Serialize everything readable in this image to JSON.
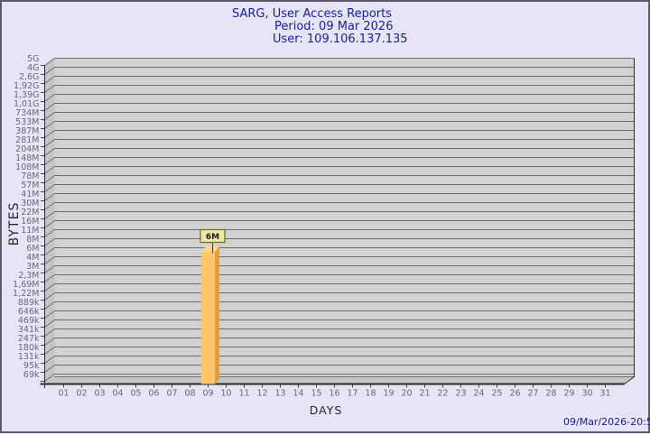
{
  "window": {
    "background_color": "#e5e5f5",
    "border_color": "#5c5c68"
  },
  "header": {
    "title": "SARG, User Access Reports",
    "period": "Period: 09 Mar 2026",
    "user": "User: 109.106.137.135",
    "text_color": "#1c1c9e"
  },
  "footer": {
    "timestamp": "09/Mar/2026-20:53"
  },
  "chart_data": {
    "type": "bar",
    "style": "3d-bar",
    "title": "SARG, User Access Reports",
    "subtitle": "Period: 09 Mar 2026 — User: 109.106.137.135",
    "xlabel": "DAYS",
    "ylabel": "BYTES",
    "scale": "logarithmic-like (SARG report scale), top 5G to bottom 69k",
    "grid": "horizontal lines at every y tick",
    "y_ticks_top_to_bottom": [
      "5G",
      "4G",
      "2,6G",
      "1,92G",
      "1,39G",
      "1,01G",
      "734M",
      "533M",
      "387M",
      "281M",
      "204M",
      "148M",
      "108M",
      "78M",
      "57M",
      "41M",
      "30M",
      "22M",
      "16M",
      "11M",
      "8M",
      "6M",
      "4M",
      "3M",
      "2,3M",
      "1,69M",
      "1,22M",
      "889k",
      "646k",
      "469k",
      "341k",
      "247k",
      "180k",
      "131k",
      "95k",
      "69k"
    ],
    "x_ticks": [
      "01",
      "02",
      "03",
      "04",
      "05",
      "06",
      "07",
      "08",
      "09",
      "10",
      "11",
      "12",
      "13",
      "14",
      "15",
      "16",
      "17",
      "18",
      "19",
      "20",
      "21",
      "22",
      "23",
      "24",
      "25",
      "26",
      "27",
      "28",
      "29",
      "30",
      "31"
    ],
    "bars": [
      {
        "day": "09",
        "value_label": "6M",
        "reaches_y_tick": "6M"
      }
    ],
    "colors": {
      "plot_bg": "#d2d2d2",
      "wall_bg": "#c5c5c5",
      "grid_line": "#6e6e6e",
      "axis_line": "#2b2b2b",
      "tick_mark": "#44444c",
      "tick_text": "#6a6a74",
      "axis_title_text": "#26262c",
      "bar_front": "#fdc567",
      "bar_top": "#f8d68e",
      "bar_side": "#dd9f45",
      "value_box_bg": "#efe9a7",
      "value_box_border": "#6b6b1e",
      "value_text": "#1a1a1a",
      "anchor_line": "#3a3a3a"
    }
  }
}
